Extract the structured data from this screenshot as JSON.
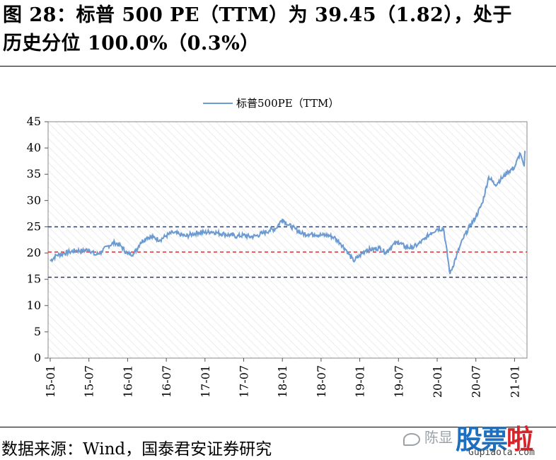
{
  "header": {
    "title_line1": "图 28：标普 500 PE（TTM）为 39.45（1.82），处于",
    "title_line2": "历史分位 100.0%（0.3%）"
  },
  "footer": {
    "source": "数据来源：Wind，国泰君安证券研究"
  },
  "watermark": {
    "name": "陈显",
    "logo_main": "股票",
    "logo_accent": "啦",
    "url": "Gupiaola.com"
  },
  "colors": {
    "series": "#6c9bd1",
    "upper_band": "#2f3f66",
    "median": "#e03030",
    "lower_band": "#2f3f66",
    "hatch": "#e6e6e6"
  },
  "chart_data": {
    "type": "line",
    "title": "",
    "xlabel": "",
    "ylabel": "",
    "ylim": [
      0,
      45
    ],
    "yticks": [
      0,
      5,
      10,
      15,
      20,
      25,
      30,
      35,
      40,
      45
    ],
    "xticks": [
      "15-01",
      "15-07",
      "16-01",
      "16-07",
      "17-01",
      "17-07",
      "18-01",
      "18-07",
      "19-01",
      "19-07",
      "20-01",
      "20-07",
      "21-01"
    ],
    "legend_position": "top-center",
    "grid": false,
    "series": [
      {
        "name": "标普500PE（TTM）",
        "x": [
          "15-01",
          "15-02",
          "15-03",
          "15-04",
          "15-05",
          "15-06",
          "15-07",
          "15-08",
          "15-09",
          "15-10",
          "15-11",
          "15-12",
          "16-01",
          "16-02",
          "16-03",
          "16-04",
          "16-05",
          "16-06",
          "16-07",
          "16-08",
          "16-09",
          "16-10",
          "16-11",
          "16-12",
          "17-01",
          "17-02",
          "17-03",
          "17-04",
          "17-05",
          "17-06",
          "17-07",
          "17-08",
          "17-09",
          "17-10",
          "17-11",
          "17-12",
          "18-01",
          "18-02",
          "18-03",
          "18-04",
          "18-05",
          "18-06",
          "18-07",
          "18-08",
          "18-09",
          "18-10",
          "18-11",
          "18-12",
          "19-01",
          "19-02",
          "19-03",
          "19-04",
          "19-05",
          "19-06",
          "19-07",
          "19-08",
          "19-09",
          "19-10",
          "19-11",
          "19-12",
          "20-01",
          "20-02",
          "20-03",
          "20-04",
          "20-05",
          "20-06",
          "20-07",
          "20-08",
          "20-09",
          "20-10",
          "20-11",
          "20-12",
          "21-01",
          "21-02"
        ],
        "values": [
          18.5,
          19.6,
          19.9,
          20.2,
          20.5,
          20.4,
          20.7,
          19.6,
          20.3,
          21.4,
          22.0,
          21.3,
          19.8,
          19.9,
          22.0,
          23.0,
          23.0,
          22.5,
          23.3,
          23.9,
          23.6,
          23.2,
          23.6,
          23.9,
          23.9,
          24.1,
          23.8,
          23.6,
          23.4,
          23.2,
          23.4,
          23.1,
          23.3,
          23.8,
          24.3,
          24.7,
          26.5,
          25.3,
          24.6,
          23.7,
          23.6,
          23.6,
          23.4,
          23.4,
          23.0,
          21.9,
          20.4,
          18.5,
          19.5,
          20.6,
          20.7,
          21.0,
          20.1,
          21.4,
          22.1,
          21.2,
          21.0,
          21.6,
          22.6,
          23.8,
          24.6,
          24.6,
          16.0,
          19.5,
          22.7,
          25.0,
          26.9,
          29.5,
          34.5,
          33.0,
          34.2,
          35.5,
          36.3,
          39.45
        ]
      }
    ],
    "reference_lines": [
      {
        "label": "upper",
        "value": 25.0
      },
      {
        "label": "median",
        "value": 20.2
      },
      {
        "label": "lower",
        "value": 15.4
      }
    ]
  }
}
